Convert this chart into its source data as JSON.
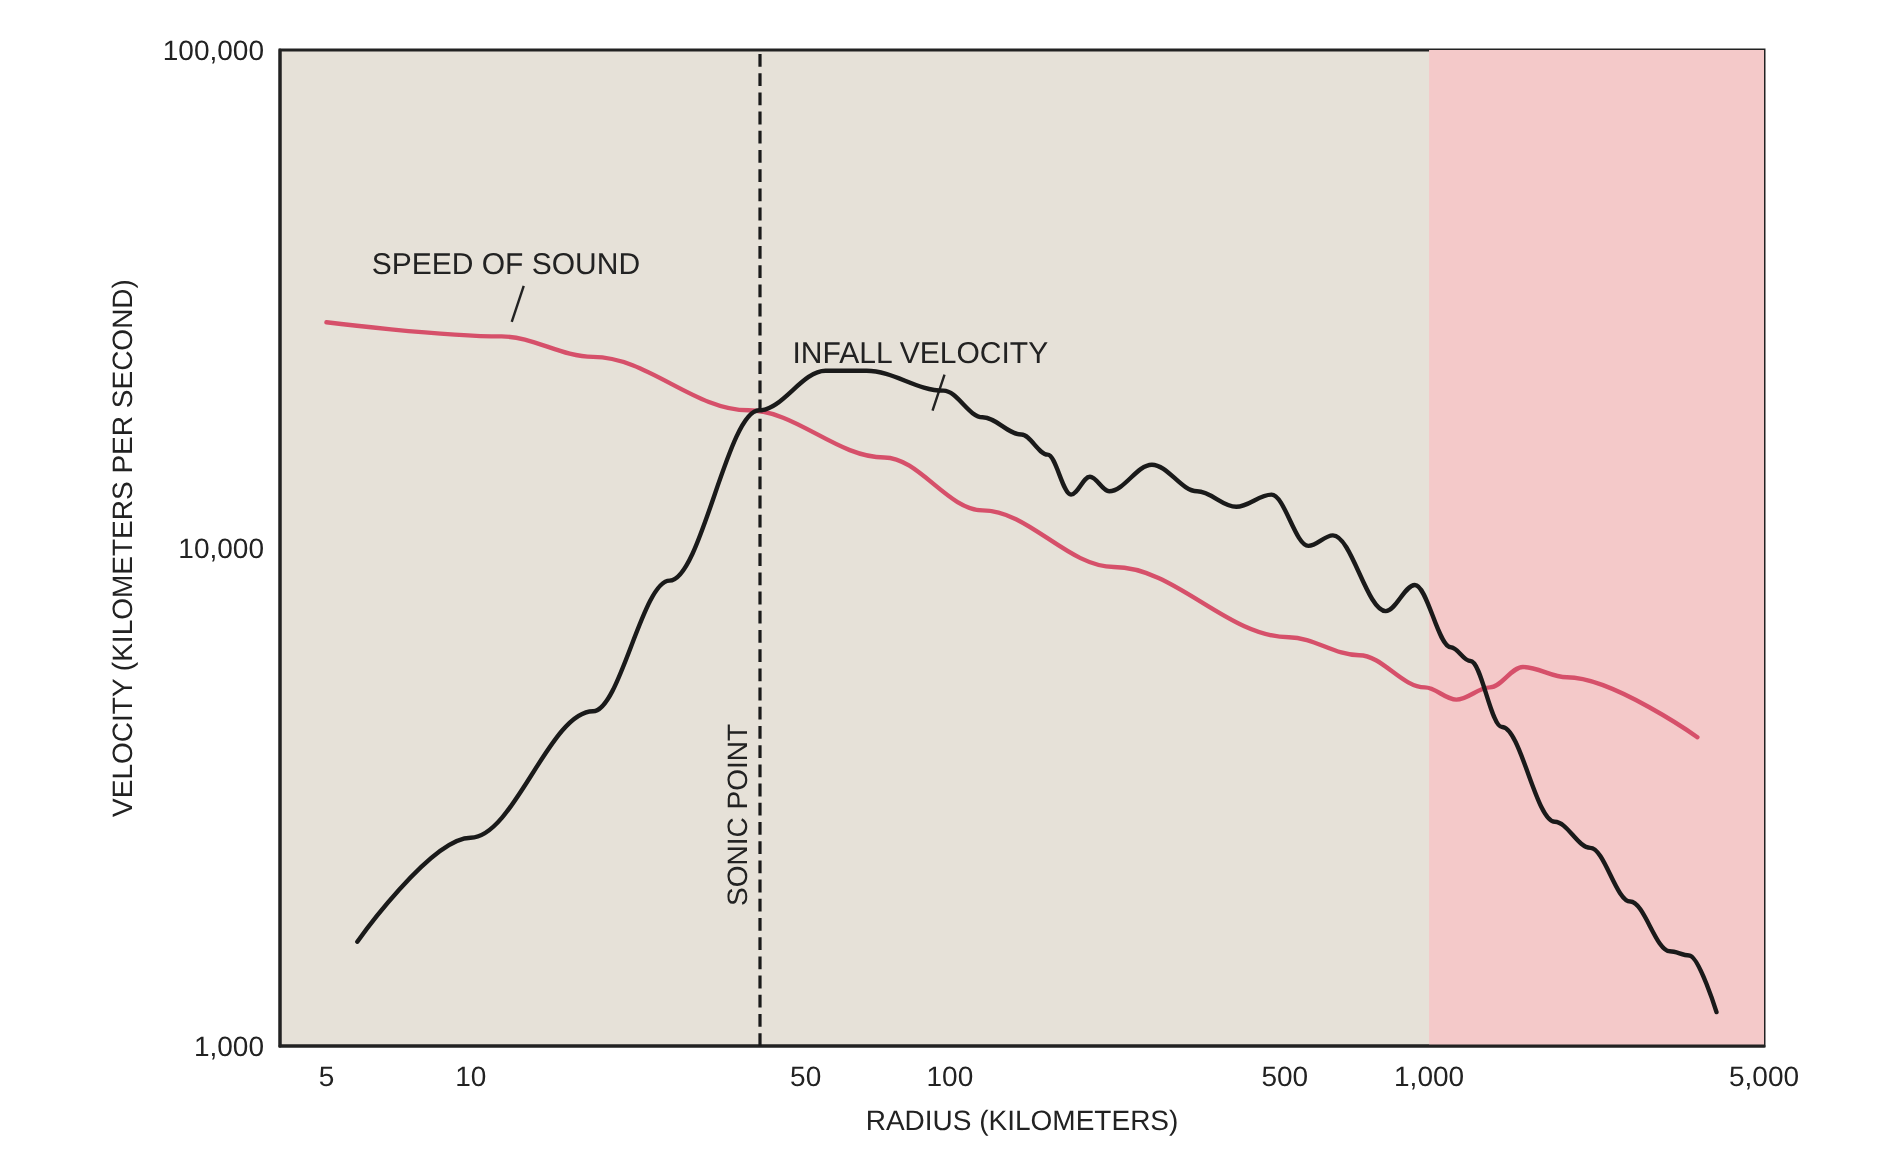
{
  "chart_data": {
    "type": "line",
    "xlabel": "RADIUS (KILOMETERS)",
    "ylabel": "VELOCITY (KILOMETERS PER SECOND)",
    "log": "xy",
    "xlim": [
      4,
      5000
    ],
    "ylim": [
      1000,
      100000
    ],
    "xticks": [
      5,
      10,
      50,
      100,
      {
        "value": 500,
        "label": "500"
      },
      {
        "value": 1000,
        "label": "1,000"
      },
      {
        "value": 5000,
        "label": "5,000"
      }
    ],
    "yticks": [
      {
        "value": 1000,
        "label": "1,000"
      },
      {
        "value": 10000,
        "label": "10,000"
      },
      {
        "value": 100000,
        "label": "100,000"
      }
    ],
    "grid": false,
    "legend": false,
    "marker": "none",
    "line_style": "solid",
    "series": [
      {
        "name": "SPEED OF SOUND",
        "color": "#d6506a",
        "x": [
          5,
          11.6,
          18,
          38,
          73,
          117,
          220,
          510,
          715,
          980,
          1140,
          1340,
          1570,
          1940,
          3630
        ],
        "values": [
          28400,
          26600,
          24200,
          18900,
          15200,
          11900,
          9160,
          6620,
          6090,
          5250,
          4960,
          5250,
          5770,
          5500,
          4170
        ]
      },
      {
        "name": "INFALL VELOCITY",
        "color": "#1a1a1a",
        "x": [
          5.8,
          10,
          18,
          26,
          40,
          55,
          67,
          97,
          117,
          141,
          160,
          179,
          196,
          215,
          264,
          328,
          396,
          469,
          560,
          630,
          812,
          934,
          1110,
          1220,
          1420,
          1830,
          2170,
          2630,
          3180,
          3490,
          3980
        ],
        "values": [
          1620,
          2620,
          4700,
          8600,
          18900,
          22700,
          22700,
          20700,
          18300,
          16900,
          15400,
          12800,
          13900,
          13000,
          14700,
          13000,
          12100,
          12800,
          10100,
          10600,
          7470,
          8430,
          6320,
          5930,
          4370,
          2820,
          2500,
          1950,
          1550,
          1520,
          1170
        ]
      }
    ],
    "ref_lines": [
      {
        "axis": "x",
        "value": 40,
        "label": "SONIC POINT",
        "color": "#1a1a1a",
        "line_style": "dashed"
      }
    ],
    "bands": [
      {
        "axis": "x",
        "from": 1000,
        "to": 5000,
        "color": "#f4c9c9"
      }
    ]
  }
}
